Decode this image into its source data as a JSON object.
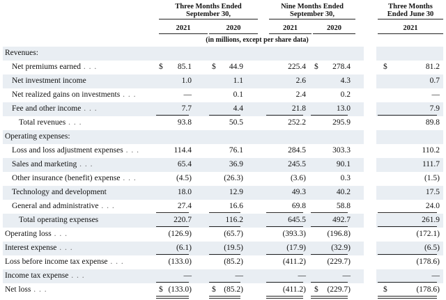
{
  "headers": {
    "periods": [
      {
        "label": "Three Months Ended\nSeptember 30,"
      },
      {
        "label": "Nine Months Ended\nSeptember 30,"
      },
      {
        "label": "Three Months\nEnded June 30"
      }
    ],
    "years": [
      "2021",
      "2020",
      "2021",
      "2020",
      "2021"
    ],
    "units": "(in millions, except per share data)"
  },
  "currency_symbol": "$",
  "rows": [
    {
      "label": "Revenues:",
      "indent": 0,
      "leader": false,
      "shade": true,
      "values": [
        "",
        "",
        "",
        "",
        ""
      ]
    },
    {
      "label": "Net premiums earned",
      "indent": 1,
      "leader": true,
      "shade": false,
      "currency": true,
      "values": [
        "85.1",
        "44.9",
        "225.4",
        "278.4",
        "81.2"
      ]
    },
    {
      "label": "Net investment income",
      "indent": 1,
      "leader": false,
      "shade": true,
      "values": [
        "1.0",
        "1.1",
        "2.6",
        "4.3",
        "0.7"
      ]
    },
    {
      "label": "Net realized gains on investments",
      "indent": 1,
      "leader": true,
      "shade": false,
      "values": [
        "—",
        "0.1",
        "2.4",
        "0.2",
        "—"
      ]
    },
    {
      "label": "Fee and other income",
      "indent": 1,
      "leader": true,
      "shade": true,
      "values": [
        "7.7",
        "4.4",
        "21.8",
        "13.0",
        "7.9"
      ],
      "rule_after": true
    },
    {
      "label": "Total revenues",
      "indent": 2,
      "leader": true,
      "shade": false,
      "values": [
        "93.8",
        "50.5",
        "252.2",
        "295.9",
        "89.8"
      ]
    },
    {
      "label": "Operating expenses:",
      "indent": 0,
      "leader": false,
      "shade": true,
      "values": [
        "",
        "",
        "",
        "",
        ""
      ]
    },
    {
      "label": "Loss and loss adjustment expenses",
      "indent": 1,
      "leader": true,
      "shade": false,
      "values": [
        "114.4",
        "76.1",
        "284.5",
        "303.3",
        "110.2"
      ]
    },
    {
      "label": "Sales and marketing",
      "indent": 1,
      "leader": true,
      "shade": true,
      "values": [
        "65.4",
        "36.9",
        "245.5",
        "90.1",
        "111.7"
      ]
    },
    {
      "label": "Other insurance (benefit) expense",
      "indent": 1,
      "leader": true,
      "shade": false,
      "values": [
        "(4.5)",
        "(26.3)",
        "(3.6)",
        "0.3",
        "(1.5)"
      ]
    },
    {
      "label": "Technology and development",
      "indent": 1,
      "leader": false,
      "shade": true,
      "values": [
        "18.0",
        "12.9",
        "49.3",
        "40.2",
        "17.5"
      ]
    },
    {
      "label": "General and administrative",
      "indent": 1,
      "leader": true,
      "shade": false,
      "values": [
        "27.4",
        "16.6",
        "69.8",
        "58.8",
        "24.0"
      ],
      "rule_after": true
    },
    {
      "label": "Total operating expenses",
      "indent": 2,
      "leader": false,
      "shade": true,
      "values": [
        "220.7",
        "116.2",
        "645.5",
        "492.7",
        "261.9"
      ],
      "rule_after": true
    },
    {
      "label": "Operating loss",
      "indent": 0,
      "leader": true,
      "shade": false,
      "values": [
        "(126.9)",
        "(65.7)",
        "(393.3)",
        "(196.8)",
        "(172.1)"
      ]
    },
    {
      "label": "Interest expense",
      "indent": 0,
      "leader": true,
      "shade": true,
      "values": [
        "(6.1)",
        "(19.5)",
        "(17.9)",
        "(32.9)",
        "(6.5)"
      ],
      "rule_after": true
    },
    {
      "label": "Loss before income tax expense",
      "indent": 0,
      "leader": true,
      "shade": false,
      "values": [
        "(133.0)",
        "(85.2)",
        "(411.2)",
        "(229.7)",
        "(178.6)"
      ]
    },
    {
      "label": "Income tax expense",
      "indent": 0,
      "leader": true,
      "shade": true,
      "values": [
        "—",
        "—",
        "—",
        "—",
        "—"
      ],
      "rule_after": true
    },
    {
      "label": "Net loss",
      "indent": 0,
      "leader": true,
      "shade": false,
      "currency": true,
      "values": [
        "(133.0)",
        "(85.2)",
        "(411.2)",
        "(229.7)",
        "(178.6)"
      ],
      "double_after": true
    }
  ]
}
